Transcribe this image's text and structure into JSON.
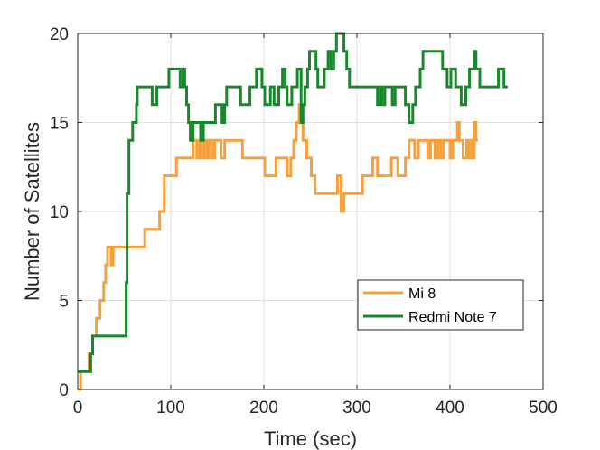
{
  "chart_data": {
    "type": "line",
    "title": "",
    "xlabel": "Time (sec)",
    "ylabel": "Number of Satellites",
    "xlim": [
      0,
      500
    ],
    "ylim": [
      0,
      20
    ],
    "xticks": [
      0,
      100,
      200,
      300,
      400,
      500
    ],
    "yticks": [
      0,
      5,
      10,
      15,
      20
    ],
    "grid": true,
    "legend_position": "lower-right",
    "series": [
      {
        "name": "Mi 8",
        "color": "#f7a03a",
        "points": [
          [
            0,
            0
          ],
          [
            3,
            0
          ],
          [
            3,
            1
          ],
          [
            12,
            1
          ],
          [
            12,
            2
          ],
          [
            16,
            2
          ],
          [
            16,
            3
          ],
          [
            20,
            3
          ],
          [
            20,
            4
          ],
          [
            24,
            4
          ],
          [
            24,
            5
          ],
          [
            28,
            5
          ],
          [
            28,
            6
          ],
          [
            30,
            6
          ],
          [
            30,
            7
          ],
          [
            32,
            7
          ],
          [
            32,
            8
          ],
          [
            36,
            8
          ],
          [
            36,
            7
          ],
          [
            38,
            7
          ],
          [
            38,
            8
          ],
          [
            72,
            8
          ],
          [
            72,
            9
          ],
          [
            88,
            9
          ],
          [
            88,
            10
          ],
          [
            93,
            10
          ],
          [
            93,
            12
          ],
          [
            106,
            12
          ],
          [
            106,
            13
          ],
          [
            124,
            13
          ],
          [
            124,
            14
          ],
          [
            128,
            14
          ],
          [
            128,
            13
          ],
          [
            131,
            13
          ],
          [
            131,
            14
          ],
          [
            133,
            14
          ],
          [
            133,
            13
          ],
          [
            136,
            13
          ],
          [
            136,
            14
          ],
          [
            139,
            14
          ],
          [
            139,
            13
          ],
          [
            141,
            13
          ],
          [
            141,
            14
          ],
          [
            144,
            14
          ],
          [
            144,
            13
          ],
          [
            147,
            13
          ],
          [
            147,
            14
          ],
          [
            154,
            14
          ],
          [
            154,
            13
          ],
          [
            158,
            13
          ],
          [
            158,
            14
          ],
          [
            177,
            14
          ],
          [
            177,
            13
          ],
          [
            201,
            13
          ],
          [
            201,
            12
          ],
          [
            213,
            12
          ],
          [
            213,
            13
          ],
          [
            225,
            13
          ],
          [
            225,
            12
          ],
          [
            229,
            12
          ],
          [
            229,
            13
          ],
          [
            232,
            13
          ],
          [
            232,
            14
          ],
          [
            235,
            14
          ],
          [
            235,
            15
          ],
          [
            238,
            15
          ],
          [
            238,
            16
          ],
          [
            240,
            16
          ],
          [
            240,
            15
          ],
          [
            242,
            15
          ],
          [
            242,
            14
          ],
          [
            246,
            14
          ],
          [
            246,
            13
          ],
          [
            251,
            13
          ],
          [
            251,
            12
          ],
          [
            255,
            12
          ],
          [
            255,
            11
          ],
          [
            272,
            11
          ],
          [
            272,
            11
          ],
          [
            279,
            11
          ],
          [
            279,
            12
          ],
          [
            283,
            12
          ],
          [
            283,
            10
          ],
          [
            286,
            10
          ],
          [
            286,
            11
          ],
          [
            306,
            11
          ],
          [
            306,
            12
          ],
          [
            317,
            12
          ],
          [
            317,
            13
          ],
          [
            322,
            13
          ],
          [
            322,
            12
          ],
          [
            337,
            12
          ],
          [
            337,
            13
          ],
          [
            344,
            13
          ],
          [
            344,
            12
          ],
          [
            352,
            12
          ],
          [
            352,
            13
          ],
          [
            356,
            13
          ],
          [
            356,
            14
          ],
          [
            362,
            14
          ],
          [
            362,
            13
          ],
          [
            366,
            13
          ],
          [
            366,
            14
          ],
          [
            376,
            14
          ],
          [
            376,
            13
          ],
          [
            379,
            13
          ],
          [
            379,
            14
          ],
          [
            384,
            14
          ],
          [
            384,
            13
          ],
          [
            387,
            13
          ],
          [
            387,
            14
          ],
          [
            390,
            14
          ],
          [
            390,
            13
          ],
          [
            393,
            13
          ],
          [
            393,
            14
          ],
          [
            400,
            14
          ],
          [
            400,
            13
          ],
          [
            403,
            13
          ],
          [
            403,
            14
          ],
          [
            408,
            14
          ],
          [
            408,
            15
          ],
          [
            410,
            15
          ],
          [
            410,
            14
          ],
          [
            414,
            14
          ],
          [
            414,
            13
          ],
          [
            418,
            13
          ],
          [
            418,
            14
          ],
          [
            420,
            14
          ],
          [
            420,
            13
          ],
          [
            423,
            13
          ],
          [
            423,
            14
          ],
          [
            424,
            14
          ],
          [
            424,
            13
          ],
          [
            426,
            13
          ],
          [
            426,
            15
          ],
          [
            428,
            15
          ],
          [
            428,
            14
          ],
          [
            430,
            14
          ]
        ]
      },
      {
        "name": "Redmi Note 7",
        "color": "#168a2a",
        "points": [
          [
            0,
            1
          ],
          [
            14,
            1
          ],
          [
            14,
            2
          ],
          [
            16,
            2
          ],
          [
            16,
            3
          ],
          [
            52,
            3
          ],
          [
            52,
            6
          ],
          [
            53,
            6
          ],
          [
            53,
            11
          ],
          [
            55,
            11
          ],
          [
            55,
            14
          ],
          [
            59,
            14
          ],
          [
            59,
            15
          ],
          [
            63,
            15
          ],
          [
            63,
            16
          ],
          [
            64,
            16
          ],
          [
            64,
            17
          ],
          [
            80,
            17
          ],
          [
            80,
            16
          ],
          [
            85,
            16
          ],
          [
            85,
            17
          ],
          [
            98,
            17
          ],
          [
            98,
            18
          ],
          [
            110,
            18
          ],
          [
            110,
            17
          ],
          [
            113,
            17
          ],
          [
            113,
            18
          ],
          [
            115,
            18
          ],
          [
            115,
            17
          ],
          [
            117,
            17
          ],
          [
            117,
            16
          ],
          [
            119,
            16
          ],
          [
            119,
            15
          ],
          [
            121,
            15
          ],
          [
            121,
            14
          ],
          [
            124,
            14
          ],
          [
            124,
            15
          ],
          [
            132,
            15
          ],
          [
            132,
            14
          ],
          [
            135,
            14
          ],
          [
            135,
            15
          ],
          [
            148,
            15
          ],
          [
            148,
            16
          ],
          [
            155,
            16
          ],
          [
            155,
            15
          ],
          [
            158,
            15
          ],
          [
            158,
            16
          ],
          [
            160,
            16
          ],
          [
            160,
            17
          ],
          [
            175,
            17
          ],
          [
            175,
            16
          ],
          [
            185,
            16
          ],
          [
            185,
            17
          ],
          [
            192,
            17
          ],
          [
            192,
            18
          ],
          [
            198,
            18
          ],
          [
            198,
            17
          ],
          [
            201,
            17
          ],
          [
            201,
            16
          ],
          [
            207,
            16
          ],
          [
            207,
            17
          ],
          [
            211,
            17
          ],
          [
            211,
            16
          ],
          [
            216,
            16
          ],
          [
            216,
            17
          ],
          [
            220,
            17
          ],
          [
            220,
            18
          ],
          [
            223,
            18
          ],
          [
            223,
            17
          ],
          [
            225,
            17
          ],
          [
            225,
            16
          ],
          [
            230,
            16
          ],
          [
            230,
            17
          ],
          [
            236,
            17
          ],
          [
            236,
            18
          ],
          [
            240,
            18
          ],
          [
            240,
            15
          ],
          [
            242,
            15
          ],
          [
            242,
            16
          ],
          [
            244,
            16
          ],
          [
            244,
            17
          ],
          [
            247,
            17
          ],
          [
            247,
            18
          ],
          [
            249,
            18
          ],
          [
            249,
            19
          ],
          [
            256,
            19
          ],
          [
            256,
            18
          ],
          [
            258,
            18
          ],
          [
            258,
            17
          ],
          [
            265,
            17
          ],
          [
            265,
            18
          ],
          [
            269,
            18
          ],
          [
            269,
            19
          ],
          [
            272,
            19
          ],
          [
            272,
            18
          ],
          [
            275,
            18
          ],
          [
            275,
            19
          ],
          [
            278,
            19
          ],
          [
            278,
            20
          ],
          [
            286,
            20
          ],
          [
            286,
            19
          ],
          [
            289,
            19
          ],
          [
            289,
            18
          ],
          [
            292,
            18
          ],
          [
            292,
            17
          ],
          [
            322,
            17
          ],
          [
            322,
            16
          ],
          [
            325,
            16
          ],
          [
            325,
            17
          ],
          [
            327,
            17
          ],
          [
            327,
            16
          ],
          [
            330,
            16
          ],
          [
            330,
            17
          ],
          [
            338,
            17
          ],
          [
            338,
            16
          ],
          [
            341,
            16
          ],
          [
            341,
            17
          ],
          [
            352,
            17
          ],
          [
            352,
            16
          ],
          [
            356,
            16
          ],
          [
            356,
            15
          ],
          [
            360,
            15
          ],
          [
            360,
            16
          ],
          [
            363,
            16
          ],
          [
            363,
            17
          ],
          [
            368,
            17
          ],
          [
            368,
            18
          ],
          [
            371,
            18
          ],
          [
            371,
            19
          ],
          [
            392,
            19
          ],
          [
            392,
            18
          ],
          [
            397,
            18
          ],
          [
            397,
            17
          ],
          [
            401,
            17
          ],
          [
            401,
            18
          ],
          [
            406,
            18
          ],
          [
            406,
            17
          ],
          [
            412,
            17
          ],
          [
            412,
            16
          ],
          [
            417,
            16
          ],
          [
            417,
            17
          ],
          [
            421,
            17
          ],
          [
            421,
            18
          ],
          [
            426,
            18
          ],
          [
            426,
            19
          ],
          [
            428,
            19
          ],
          [
            428,
            18
          ],
          [
            432,
            18
          ],
          [
            432,
            17
          ],
          [
            452,
            17
          ],
          [
            452,
            18
          ],
          [
            458,
            18
          ],
          [
            458,
            17
          ],
          [
            462,
            17
          ]
        ]
      }
    ]
  }
}
